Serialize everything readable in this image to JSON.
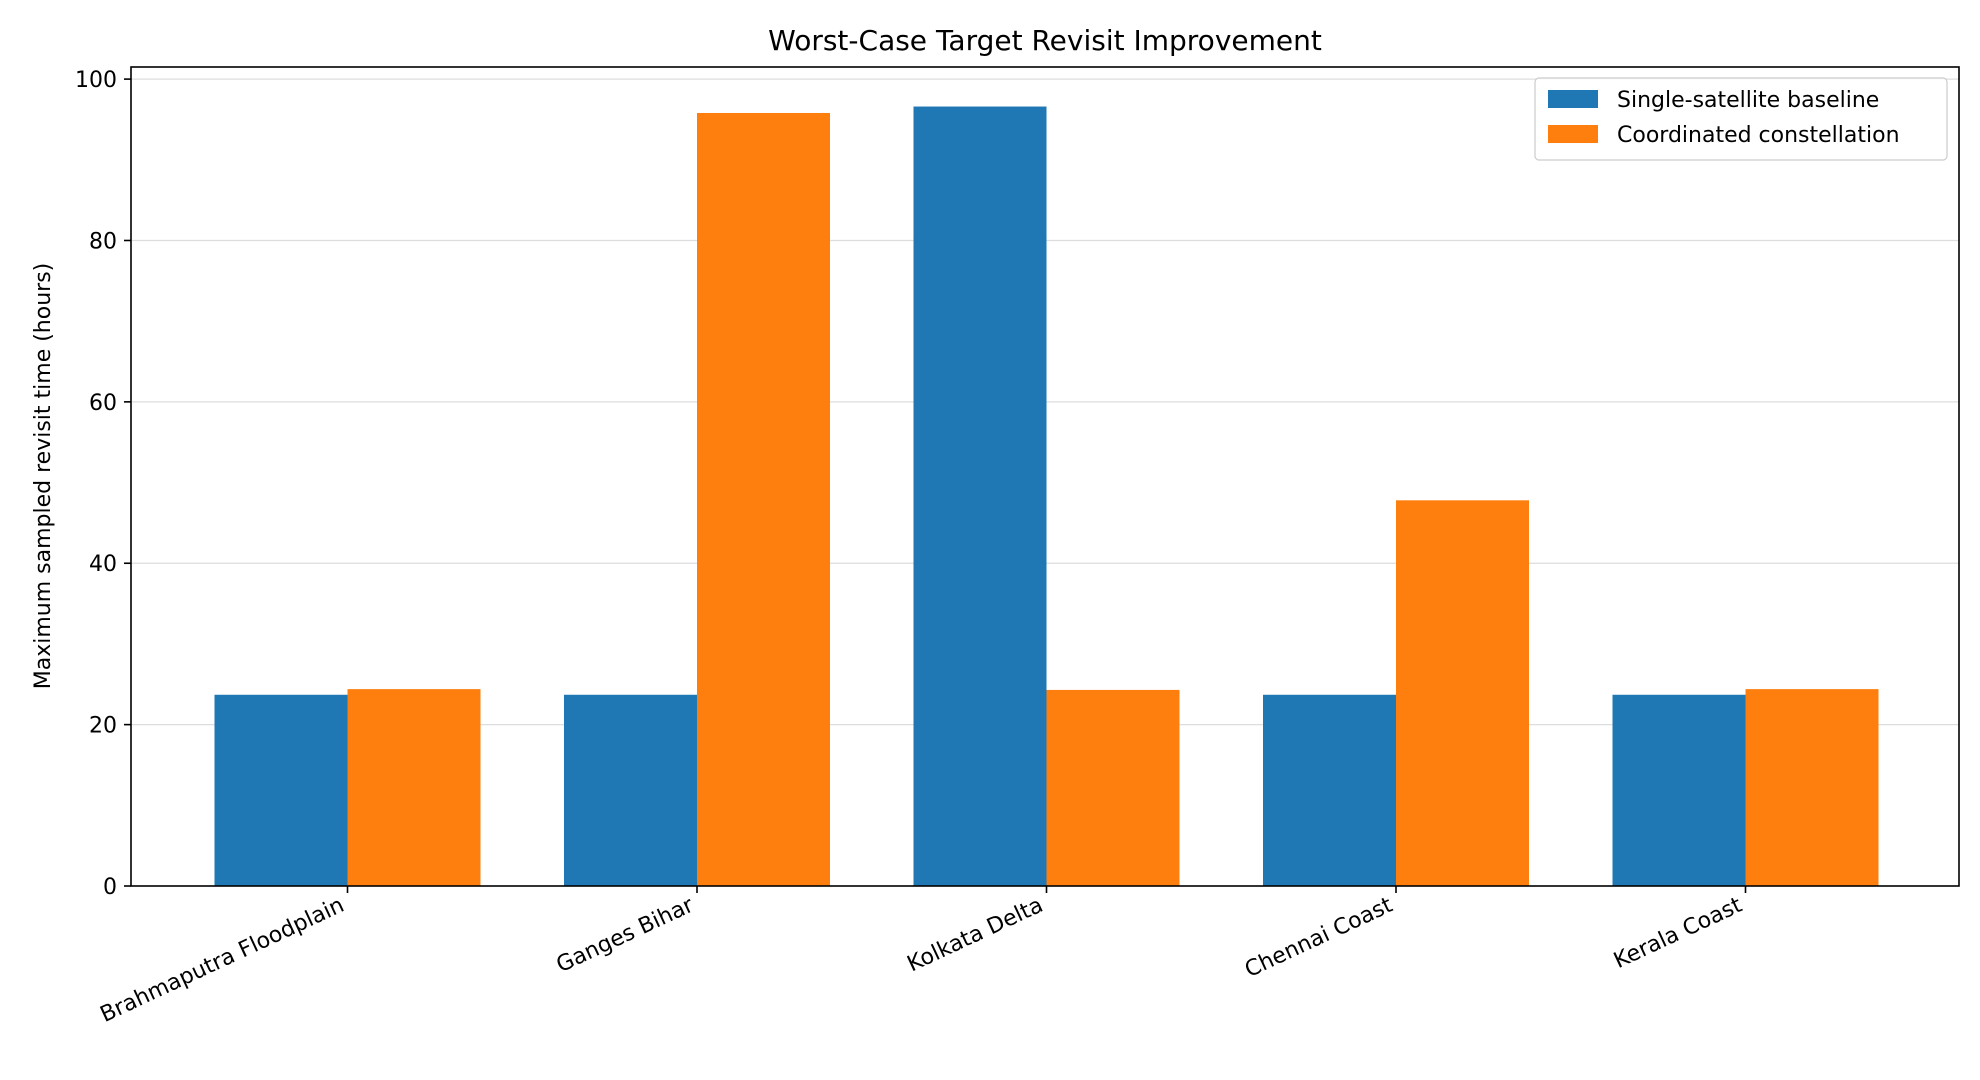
{
  "chart_data": {
    "type": "bar",
    "title": "Worst-Case Target Revisit Improvement",
    "xlabel": "",
    "ylabel": "Maximum sampled revisit time (hours)",
    "categories": [
      "Brahmaputra Floodplain",
      "Ganges Bihar",
      "Kolkata Delta",
      "Chennai Coast",
      "Kerala Coast"
    ],
    "series": [
      {
        "name": "Single-satellite baseline",
        "color": "#1f77b4",
        "values": [
          23.7,
          23.7,
          96.6,
          23.7,
          23.7
        ]
      },
      {
        "name": "Coordinated constellation",
        "color": "#ff7f0e",
        "values": [
          24.4,
          95.8,
          24.3,
          47.8,
          24.4
        ]
      }
    ],
    "ylim": [
      0,
      101.5
    ],
    "yticks": [
      0,
      20,
      40,
      60,
      80,
      100
    ],
    "grid": "y",
    "legend_position": "top-right"
  }
}
